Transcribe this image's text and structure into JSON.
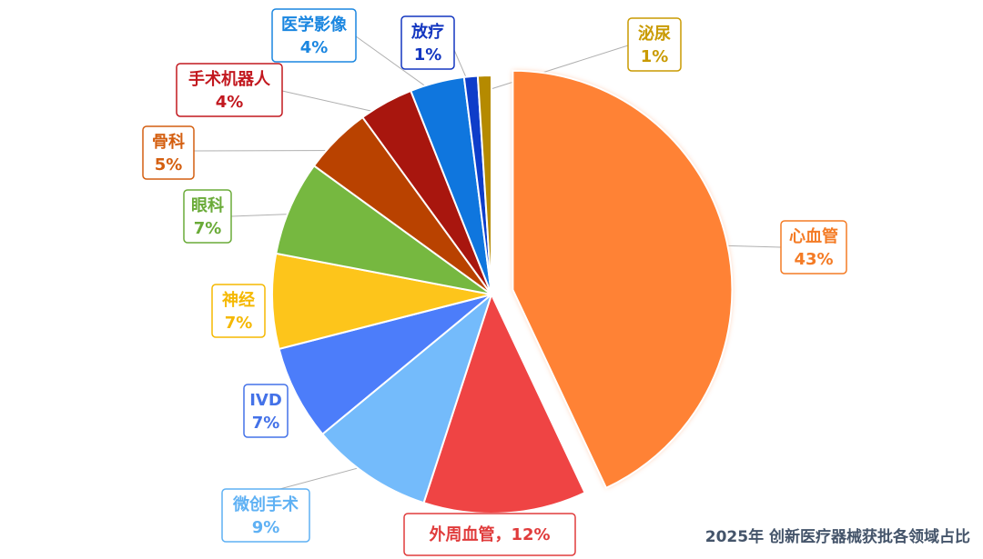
{
  "caption": "2025年 创新医疗器械获批各领域占比",
  "chart_data": {
    "type": "pie",
    "title": "2025年 创新医疗器械获批各领域占比",
    "legend": "none",
    "slices": [
      {
        "name": "心血管",
        "value": 43,
        "label": "43%",
        "color": "#ff8235",
        "exploded": true
      },
      {
        "name": "外周血管",
        "value": 12,
        "label": "12%",
        "color": "#ef4444"
      },
      {
        "name": "微创手术",
        "value": 9,
        "label": "9%",
        "color": "#74bbfb"
      },
      {
        "name": "IVD",
        "value": 7,
        "label": "7%",
        "color": "#4c7dfa"
      },
      {
        "name": "神经",
        "value": 7,
        "label": "7%",
        "color": "#fdc51b"
      },
      {
        "name": "眼科",
        "value": 7,
        "label": "7%",
        "color": "#76b840"
      },
      {
        "name": "骨科",
        "value": 5,
        "label": "5%",
        "color": "#b94200"
      },
      {
        "name": "手术机器人",
        "value": 4,
        "label": "4%",
        "color": "#a8160e"
      },
      {
        "name": "医学影像",
        "value": 4,
        "label": "4%",
        "color": "#0f76de"
      },
      {
        "name": "放疗",
        "value": 1,
        "label": "1%",
        "color": "#0e3dc9"
      },
      {
        "name": "泌尿",
        "value": 1,
        "label": "1%",
        "color": "#b58a00"
      }
    ],
    "label_colors": {
      "心血管": "#f47b25",
      "外周血管": "#e03b3b",
      "微创手术": "#5fb1f4",
      "IVD": "#4472e8",
      "神经": "#f5b800",
      "眼科": "#6aab38",
      "骨科": "#d45f10",
      "手术机器人": "#c2181f",
      "医学影像": "#1a86e0",
      "放疗": "#1336c0",
      "泌尿": "#c99a00"
    }
  }
}
